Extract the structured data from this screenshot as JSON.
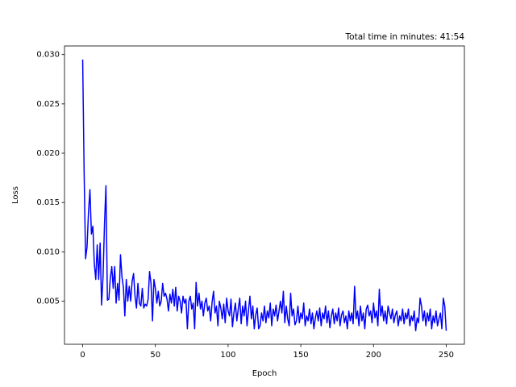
{
  "chart_data": {
    "type": "line",
    "title": "Total time in minutes: 41:54",
    "xlabel": "Epoch",
    "ylabel": "Loss",
    "color": "#0000ff",
    "xlim": [
      -12.5,
      262.5
    ],
    "xticks": [
      0,
      50,
      100,
      150,
      200,
      250
    ],
    "ylim": [
      0.000625,
      0.030875
    ],
    "yticks": [
      0.005,
      {
        "value": 0.01,
        "label": "0.010"
      },
      0.015,
      {
        "value": 0.02,
        "label": "0.020"
      },
      0.025,
      {
        "value": 0.03,
        "label": "0.030"
      }
    ],
    "values": [
      0.0295,
      0.018,
      0.0093,
      0.0105,
      0.014,
      0.0163,
      0.0118,
      0.0126,
      0.0088,
      0.0072,
      0.0107,
      0.0072,
      0.0109,
      0.0046,
      0.0075,
      0.0128,
      0.0167,
      0.0051,
      0.0052,
      0.0073,
      0.0085,
      0.0063,
      0.0085,
      0.0048,
      0.0068,
      0.0051,
      0.0097,
      0.0075,
      0.0064,
      0.0035,
      0.0072,
      0.005,
      0.0065,
      0.005,
      0.007,
      0.0078,
      0.0055,
      0.0043,
      0.0068,
      0.0048,
      0.0045,
      0.0063,
      0.0043,
      0.0047,
      0.0045,
      0.0052,
      0.008,
      0.0068,
      0.003,
      0.0072,
      0.0063,
      0.0048,
      0.006,
      0.0045,
      0.005,
      0.0068,
      0.0055,
      0.0058,
      0.0052,
      0.004,
      0.0057,
      0.0048,
      0.0062,
      0.0045,
      0.0064,
      0.004,
      0.0055,
      0.005,
      0.0038,
      0.0055,
      0.0048,
      0.0052,
      0.0022,
      0.005,
      0.0055,
      0.0042,
      0.0048,
      0.0022,
      0.0069,
      0.0045,
      0.0058,
      0.0042,
      0.005,
      0.0035,
      0.0048,
      0.0053,
      0.004,
      0.0045,
      0.003,
      0.0049,
      0.006,
      0.0038,
      0.0045,
      0.0025,
      0.005,
      0.0043,
      0.0032,
      0.0047,
      0.0028,
      0.0053,
      0.004,
      0.0035,
      0.0052,
      0.0024,
      0.0038,
      0.0048,
      0.003,
      0.0042,
      0.0053,
      0.0027,
      0.0045,
      0.0035,
      0.005,
      0.0025,
      0.004,
      0.0055,
      0.0032,
      0.0045,
      0.0022,
      0.0036,
      0.0043,
      0.0022,
      0.0025,
      0.0038,
      0.003,
      0.0045,
      0.0028,
      0.004,
      0.0033,
      0.0048,
      0.0025,
      0.0042,
      0.0035,
      0.0046,
      0.003,
      0.004,
      0.005,
      0.0038,
      0.006,
      0.0028,
      0.0045,
      0.0032,
      0.0025,
      0.0058,
      0.0035,
      0.0042,
      0.0026,
      0.003,
      0.0045,
      0.0028,
      0.0038,
      0.0032,
      0.0048,
      0.0025,
      0.0035,
      0.003,
      0.0042,
      0.0027,
      0.0038,
      0.0022,
      0.0033,
      0.004,
      0.003,
      0.0043,
      0.0025,
      0.0038,
      0.0032,
      0.0045,
      0.0028,
      0.004,
      0.0023,
      0.0035,
      0.0042,
      0.0027,
      0.0038,
      0.003,
      0.0043,
      0.0025,
      0.0036,
      0.004,
      0.0028,
      0.0035,
      0.0022,
      0.004,
      0.003,
      0.0038,
      0.0027,
      0.0065,
      0.0032,
      0.004,
      0.0025,
      0.0045,
      0.003,
      0.0038,
      0.0022,
      0.0042,
      0.0046,
      0.0035,
      0.004,
      0.0028,
      0.0048,
      0.0033,
      0.004,
      0.0025,
      0.0062,
      0.0035,
      0.0045,
      0.003,
      0.004,
      0.0027,
      0.0045,
      0.0038,
      0.0032,
      0.0042,
      0.0028,
      0.0036,
      0.004,
      0.0025,
      0.0035,
      0.003,
      0.0042,
      0.0027,
      0.0038,
      0.0032,
      0.0042,
      0.0025,
      0.0035,
      0.003,
      0.004,
      0.002,
      0.0033,
      0.0028,
      0.0053,
      0.0045,
      0.003,
      0.004,
      0.0025,
      0.0038,
      0.003,
      0.0042,
      0.0022,
      0.0035,
      0.0028,
      0.004,
      0.0025,
      0.0032,
      0.0038,
      0.0022,
      0.0053,
      0.0045,
      0.002
    ]
  }
}
